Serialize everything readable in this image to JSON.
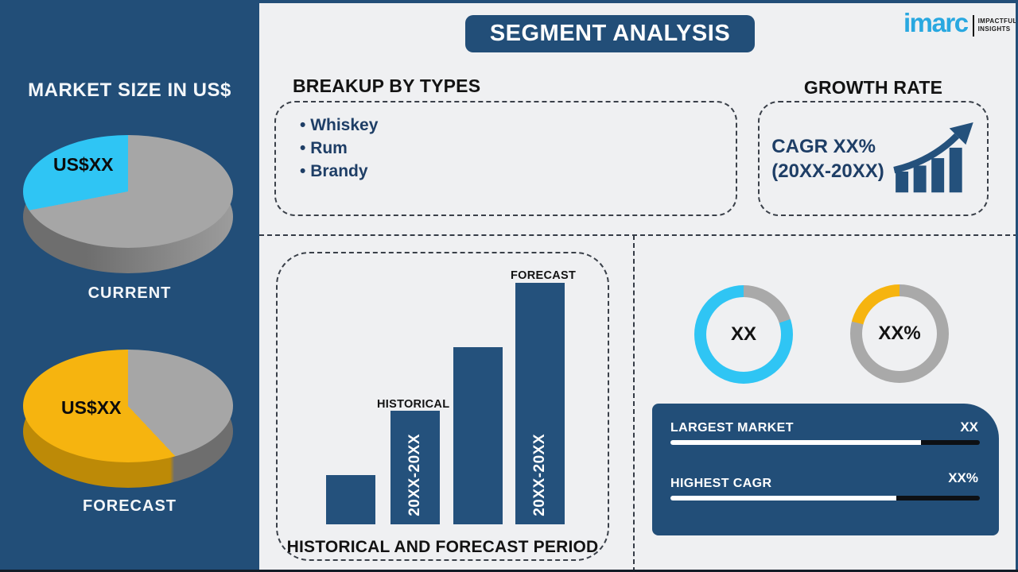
{
  "header": {
    "title": "SEGMENT ANALYSIS"
  },
  "logo": {
    "brand": "imarc",
    "tagline_line1": "IMPACTFUL",
    "tagline_line2": "INSIGHTS",
    "brand_color": "#29a8e0"
  },
  "sidebar": {
    "title": "MARKET SIZE IN US$",
    "pies": [
      {
        "caption": "CURRENT",
        "value_label": "US$XX",
        "base_color": "#a6a6a6",
        "highlight_color": "#2fc5f4",
        "highlight_percent": 28
      },
      {
        "caption": "FORECAST",
        "value_label": "US$XX",
        "base_color": "#a6a6a6",
        "highlight_color": "#f6b40f",
        "highlight_percent": 62
      }
    ]
  },
  "breakup": {
    "heading": "BREAKUP BY TYPES",
    "items": [
      "Whiskey",
      "Rum",
      "Brandy"
    ]
  },
  "growth": {
    "heading": "GROWTH RATE",
    "cagr_line1": "CAGR XX%",
    "cagr_line2": "(20XX-20XX)"
  },
  "period_chart": {
    "caption": "HISTORICAL AND FORECAST PERIOD",
    "bars": [
      {
        "tag": "",
        "range": ""
      },
      {
        "tag": "HISTORICAL",
        "range": "20XX-20XX"
      },
      {
        "tag": "",
        "range": ""
      },
      {
        "tag": "FORECAST",
        "range": "20XX-20XX"
      }
    ],
    "relative_heights": [
      20,
      46,
      72,
      98
    ],
    "bar_color": "#24517c"
  },
  "donuts": [
    {
      "label": "XX",
      "segments": [
        {
          "color": "#a9a9a9",
          "end": 20
        },
        {
          "color": "#2fc5f4",
          "end": 100
        }
      ]
    },
    {
      "label": "XX%",
      "segments": [
        {
          "color": "#a9a9a9",
          "end": 79
        },
        {
          "color": "#f6b40f",
          "end": 100
        }
      ]
    }
  ],
  "stats_box": {
    "rows": [
      {
        "label": "LARGEST MARKET",
        "value": "XX",
        "fill_percent": 81
      },
      {
        "label": "HIGHEST CAGR",
        "value": "XX%",
        "fill_percent": 73
      }
    ]
  },
  "chart_data": [
    {
      "type": "pie",
      "title": "CURRENT",
      "labels": [
        "Market size (US$XX)",
        "Remainder"
      ],
      "values": [
        28,
        72
      ],
      "colors": [
        "#2fc5f4",
        "#a6a6a6"
      ],
      "data_label": "US$XX",
      "style": "3d"
    },
    {
      "type": "pie",
      "title": "FORECAST",
      "labels": [
        "Market size (US$XX)",
        "Remainder"
      ],
      "values": [
        62,
        38
      ],
      "colors": [
        "#f6b40f",
        "#a6a6a6"
      ],
      "data_label": "US$XX",
      "style": "3d"
    },
    {
      "type": "bar",
      "title": "HISTORICAL AND FORECAST PERIOD",
      "categories": [
        "",
        "HISTORICAL 20XX-20XX",
        "",
        "FORECAST 20XX-20XX"
      ],
      "values": [
        20,
        46,
        72,
        98
      ],
      "ylabel": "",
      "xlabel": "",
      "note": "heights relative, axis unlabeled placeholder chart",
      "bar_color": "#24517c"
    },
    {
      "type": "pie",
      "title": "donut-gauge-left",
      "labels": [
        "filled",
        "rest"
      ],
      "values": [
        80,
        20
      ],
      "colors": [
        "#2fc5f4",
        "#a9a9a9"
      ],
      "center_label": "XX",
      "style": "donut"
    },
    {
      "type": "pie",
      "title": "donut-gauge-right",
      "labels": [
        "filled",
        "rest"
      ],
      "values": [
        21,
        79
      ],
      "colors": [
        "#f6b40f",
        "#a9a9a9"
      ],
      "center_label": "XX%",
      "style": "donut"
    },
    {
      "type": "bar",
      "title": "market stats",
      "categories": [
        "LARGEST MARKET",
        "HIGHEST CAGR"
      ],
      "values": [
        81,
        73
      ],
      "value_labels": [
        "XX",
        "XX%"
      ],
      "note": "horizontal progress bars, % of track filled"
    }
  ]
}
